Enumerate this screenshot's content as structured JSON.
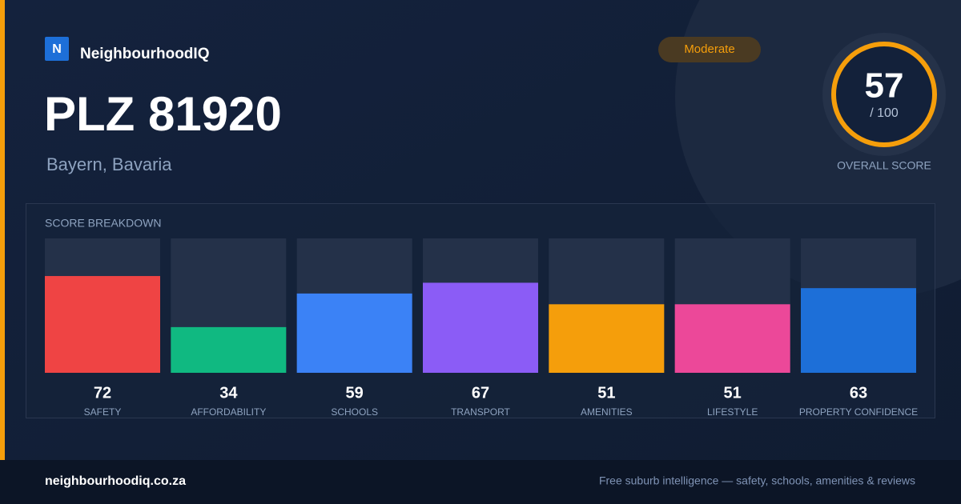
{
  "brand": {
    "logo": "N",
    "name": "NeighbourhoodIQ"
  },
  "header": {
    "title": "PLZ 81920",
    "subtitle": "Bayern, Bavaria",
    "badge": "Moderate"
  },
  "overall": {
    "score": 57,
    "suffix": "/ 100",
    "label": "OVERALL SCORE"
  },
  "chart_data": {
    "type": "bar",
    "title": "SCORE BREAKDOWN",
    "categories": [
      "SAFETY",
      "AFFORDABILITY",
      "SCHOOLS",
      "TRANSPORT",
      "AMENITIES",
      "LIFESTYLE",
      "PROPERTY CONFIDENCE"
    ],
    "values": [
      72,
      34,
      59,
      67,
      51,
      51,
      63
    ],
    "colors": [
      "#ef4444",
      "#10b981",
      "#3b82f6",
      "#8b5cf6",
      "#f59e0b",
      "#ec4899",
      "#1d6fd8"
    ],
    "ylim": [
      0,
      100
    ]
  },
  "footer": {
    "site": "neighbourhoodiq.co.za",
    "tagline": "Free suburb intelligence — safety, schools, amenities & reviews"
  }
}
